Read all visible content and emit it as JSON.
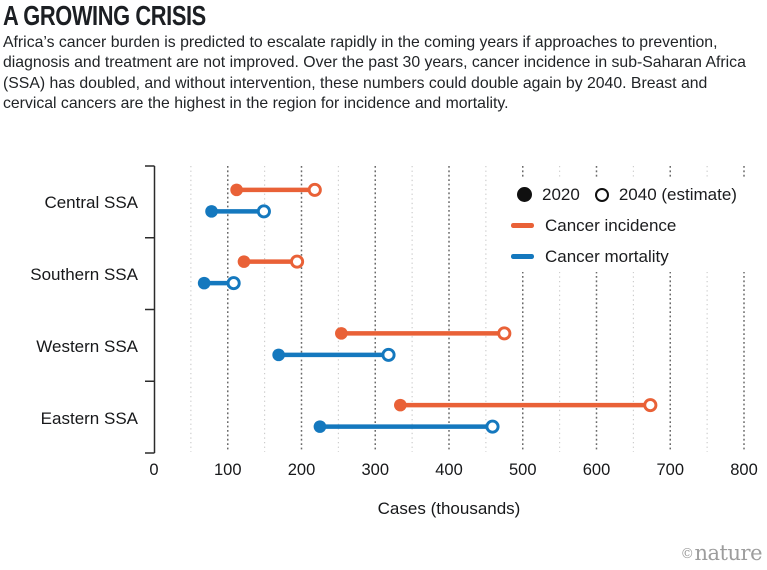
{
  "header": {
    "title": "A GROWING CRISIS",
    "description": "Africa’s cancer burden is predicted to escalate rapidly in the coming years if approaches to prevention, diagnosis and treatment are not improved. Over the past 30 years, cancer incidence in sub-Saharan Africa (SSA) has doubled, and without intervention, these numbers could double again by 2040. Breast and cervical cancers are the highest in the region for incidence and mortality."
  },
  "chart_data": {
    "type": "dumbbell",
    "title": "A GROWING CRISIS",
    "categories": [
      "Central SSA",
      "Southern SSA",
      "Western SSA",
      "Eastern SSA"
    ],
    "series": [
      {
        "name": "Cancer incidence",
        "color": "#e96137",
        "values_2020": [
          112,
          122,
          254,
          334
        ],
        "values_2040": [
          218,
          194,
          475,
          673
        ]
      },
      {
        "name": "Cancer mortality",
        "color": "#1478be",
        "values_2020": [
          78,
          68,
          169,
          225
        ],
        "values_2040": [
          149,
          108,
          318,
          459
        ]
      }
    ],
    "xlabel": "Cases (thousands)",
    "xlim": [
      0,
      800
    ],
    "x_ticks": [
      0,
      100,
      200,
      300,
      400,
      500,
      600,
      700,
      800
    ],
    "minor_grid_step": 50,
    "grid": "dotted-vertical",
    "legend_position": "top-right",
    "legend": {
      "marker_2020_label": "2020",
      "marker_2040_label": "2040 (estimate)"
    }
  },
  "footer": {
    "credit_symbol": "©",
    "credit_name": "nature"
  },
  "colors": {
    "incidence": "#e96137",
    "mortality": "#1478be",
    "marker_black": "#101010",
    "grid_major": "#6a6a6a",
    "grid_minor": "#c9c9c9",
    "credit": "#9d9d9d"
  }
}
